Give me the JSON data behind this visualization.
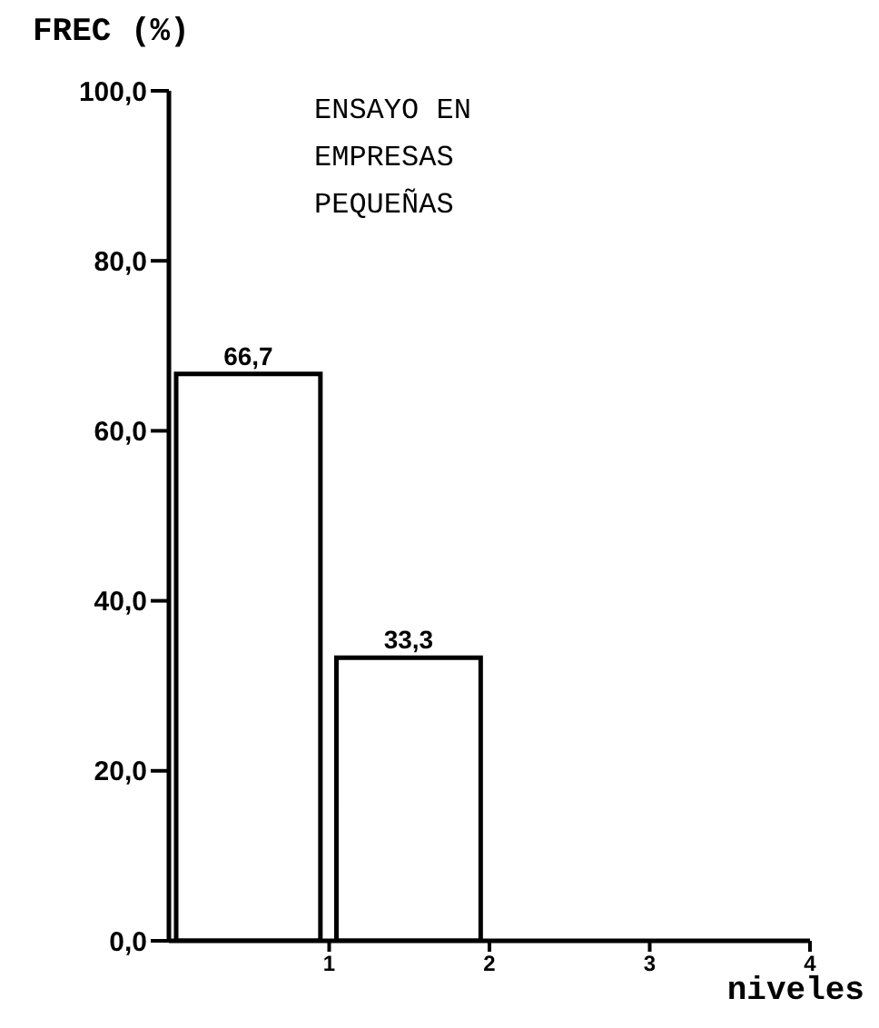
{
  "chart_data": {
    "type": "histogram",
    "title": "ENSAYO EN EMPRESAS PEQUEÑAS",
    "ylabel": "FREC (%)",
    "xlabel": "niveles",
    "bins": [
      0,
      1,
      2,
      3,
      4
    ],
    "values": [
      66.7,
      33.3,
      0,
      0
    ],
    "value_labels": [
      "66,7",
      "33,3",
      null,
      null
    ],
    "color": "#000000",
    "xlim": [
      0,
      4
    ],
    "xticks": [
      1,
      2,
      3,
      4
    ],
    "ylim": [
      0,
      100
    ],
    "yticks": [
      {
        "value": 0,
        "label": "0,0"
      },
      {
        "value": 20,
        "label": "20,0"
      },
      {
        "value": 40,
        "label": "40,0"
      },
      {
        "value": 60,
        "label": "60,0"
      },
      {
        "value": 80,
        "label": "80,0"
      },
      {
        "value": 100,
        "label": "100,0"
      }
    ],
    "grid": false,
    "legend": false
  }
}
